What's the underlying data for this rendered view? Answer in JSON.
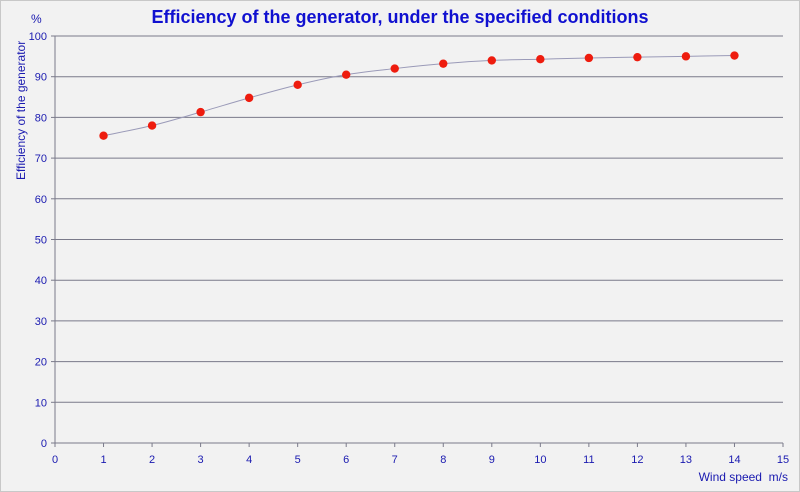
{
  "chart_data": {
    "type": "scatter",
    "title": "Efficiency of the generator, under the specified conditions",
    "ylabel": "Efficiency of the generator",
    "y_unit": "%",
    "xlabel": "Wind speed",
    "x_unit": "m/s",
    "xlim": [
      0,
      15
    ],
    "ylim": [
      0,
      100
    ],
    "x_ticks": [
      0,
      1,
      2,
      3,
      4,
      5,
      6,
      7,
      8,
      9,
      10,
      11,
      12,
      13,
      14,
      15
    ],
    "y_ticks": [
      0,
      10,
      20,
      30,
      40,
      50,
      60,
      70,
      80,
      90,
      100
    ],
    "grid": "horizontal",
    "trend_line": true,
    "colors": {
      "marker": "#ee1c0e",
      "line": "#9a9ab8",
      "grid": "#7a7a8a",
      "text": "#1a1ab0",
      "title": "#1010d0"
    },
    "series": [
      {
        "x": [
          1,
          2,
          3,
          4,
          5,
          6,
          7,
          8,
          9,
          10,
          11,
          12,
          13,
          14
        ],
        "y": [
          75.5,
          78,
          81.3,
          84.8,
          88,
          90.5,
          92,
          93.2,
          94,
          94.3,
          94.6,
          94.8,
          95,
          95.2
        ]
      }
    ]
  }
}
